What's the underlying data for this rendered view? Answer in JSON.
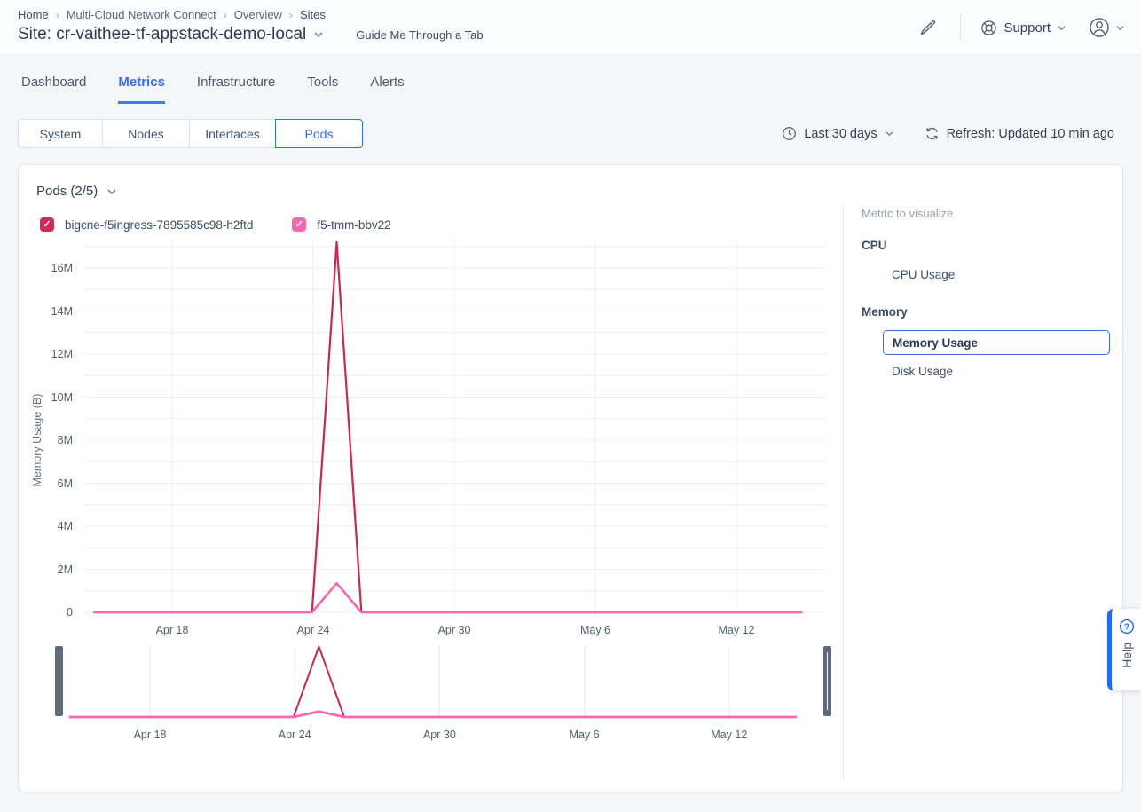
{
  "colors": {
    "accent": "#3a6ce8",
    "crimson": "#c9274f",
    "pink": "#f768b1",
    "help_blue": "#1f6bf1"
  },
  "breadcrumb": {
    "items": [
      {
        "label": "Home",
        "link": true
      },
      {
        "label": "Multi-Cloud Network Connect",
        "link": false
      },
      {
        "label": "Overview",
        "link": false
      },
      {
        "label": "Sites",
        "link": true
      }
    ]
  },
  "header": {
    "site_title": "Site: cr-vaithee-tf-appstack-demo-local",
    "guide_label": "Guide Me Through a Tab",
    "support_label": "Support"
  },
  "tabs": {
    "items": [
      "Dashboard",
      "Metrics",
      "Infrastructure",
      "Tools",
      "Alerts"
    ],
    "active": "Metrics"
  },
  "subnav": {
    "segments": [
      "System",
      "Nodes",
      "Interfaces",
      "Pods"
    ],
    "active": "Pods",
    "time_range": "Last 30 days",
    "refresh_label": "Refresh: Updated 10 min ago"
  },
  "panel": {
    "title": "Pods (2/5)"
  },
  "metric_panel": {
    "title": "Metric to visualize",
    "groups": [
      {
        "label": "CPU",
        "items": [
          {
            "label": "CPU Usage",
            "selected": false
          }
        ]
      },
      {
        "label": "Memory",
        "items": [
          {
            "label": "Memory Usage",
            "selected": true
          },
          {
            "label": "Disk Usage",
            "selected": false
          }
        ]
      }
    ]
  },
  "help": {
    "label": "Help"
  },
  "chart_data": {
    "type": "line",
    "title": "Pods (2/5)",
    "ylabel": "Memory Usage (B)",
    "ylim": [
      0,
      17300000
    ],
    "y_ticks": [
      "0",
      "2M",
      "4M",
      "6M",
      "8M",
      "10M",
      "12M",
      "14M",
      "16M"
    ],
    "y_tick_values": [
      0,
      2000000,
      4000000,
      6000000,
      8000000,
      10000000,
      12000000,
      14000000,
      16000000
    ],
    "y_minor_grid_step": 1000000,
    "grid": true,
    "x_ticks": [
      "Apr 18",
      "Apr 24",
      "Apr 30",
      "May 6",
      "May 12"
    ],
    "x_tick_day_offsets": [
      0,
      6,
      12,
      18,
      24
    ],
    "x_unit": "days since Apr 18",
    "x_domain_days": [
      -3.35,
      26.8
    ],
    "legend_position": "top-left",
    "series": [
      {
        "name": "bigcne-f5ingress-7895585c98-h2ftd",
        "color": "#c9274f",
        "points": [
          [
            -3.35,
            0
          ],
          [
            5.95,
            0
          ],
          [
            7,
            17200000
          ],
          [
            8.05,
            0
          ],
          [
            26.8,
            0
          ]
        ]
      },
      {
        "name": "f5-tmm-bbv22",
        "color": "#f768b1",
        "points": [
          [
            -3.35,
            0
          ],
          [
            5.95,
            0
          ],
          [
            7,
            1350000
          ],
          [
            8.05,
            0
          ],
          [
            26.8,
            0
          ]
        ]
      }
    ],
    "brush": {
      "x_ticks": [
        "Apr 18",
        "Apr 24",
        "Apr 30",
        "May 6",
        "May 12"
      ],
      "selection": "full range"
    }
  }
}
